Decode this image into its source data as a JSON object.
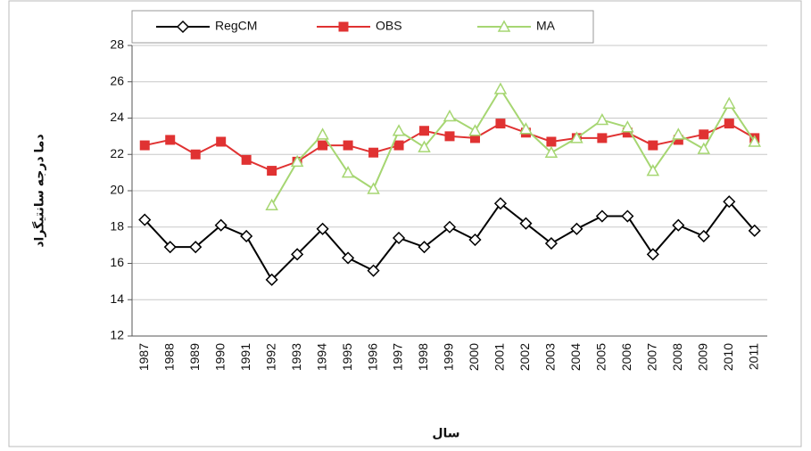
{
  "chart_data": {
    "type": "line",
    "y_label": "دما درجه سانتیگراد",
    "x_label": "سال",
    "categories": [
      "1987",
      "1988",
      "1989",
      "1990",
      "1991",
      "1992",
      "1993",
      "1994",
      "1995",
      "1996",
      "1997",
      "1998",
      "1999",
      "2000",
      "2001",
      "2002",
      "2003",
      "2004",
      "2005",
      "2006",
      "2007",
      "2008",
      "2009",
      "2010",
      "2011"
    ],
    "series": [
      {
        "name": "RegCM",
        "color": "#000000",
        "marker": "diamond",
        "values": [
          18.4,
          16.9,
          16.9,
          18.1,
          17.5,
          15.1,
          16.5,
          17.9,
          16.3,
          15.6,
          17.4,
          16.9,
          18.0,
          17.3,
          19.3,
          18.2,
          17.1,
          17.9,
          18.6,
          18.6,
          16.5,
          18.1,
          17.5,
          19.4,
          17.8
        ]
      },
      {
        "name": "OBS",
        "color": "#e03232",
        "marker": "square",
        "values": [
          22.5,
          22.8,
          22.0,
          22.7,
          21.7,
          21.1,
          21.6,
          22.5,
          22.5,
          22.1,
          22.5,
          23.3,
          23.0,
          22.9,
          23.7,
          23.2,
          22.7,
          22.9,
          22.9,
          23.2,
          22.5,
          22.8,
          23.1,
          23.7,
          22.9
        ]
      },
      {
        "name": "MA",
        "color": "#a6d672",
        "marker": "triangle",
        "values": [
          null,
          null,
          null,
          null,
          null,
          19.2,
          21.6,
          23.1,
          21.0,
          20.1,
          23.3,
          22.4,
          24.1,
          23.3,
          25.6,
          23.4,
          22.1,
          22.9,
          23.9,
          23.5,
          21.1,
          23.1,
          22.3,
          24.8,
          22.7
        ]
      }
    ],
    "ylim": [
      12,
      28
    ],
    "yticks": [
      12,
      14,
      16,
      18,
      20,
      22,
      24,
      26,
      28
    ],
    "grid": true
  }
}
